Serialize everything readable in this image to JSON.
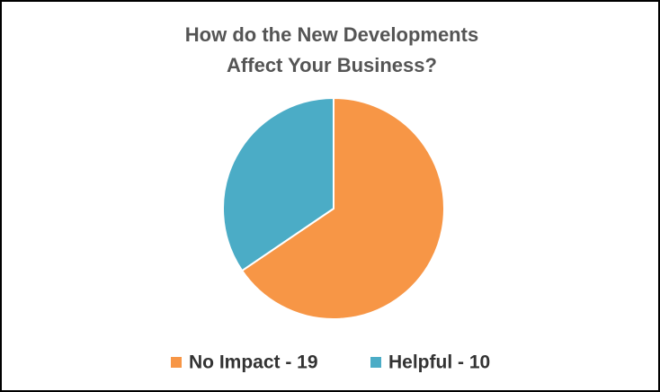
{
  "chart_data": {
    "type": "pie",
    "title": "How do the New Developments Affect Your Business?",
    "categories": [
      "No Impact - 19",
      "Helpful - 10"
    ],
    "values": [
      19,
      10
    ],
    "colors": [
      "#f79646",
      "#4bacc6"
    ],
    "legend": "bottom"
  }
}
